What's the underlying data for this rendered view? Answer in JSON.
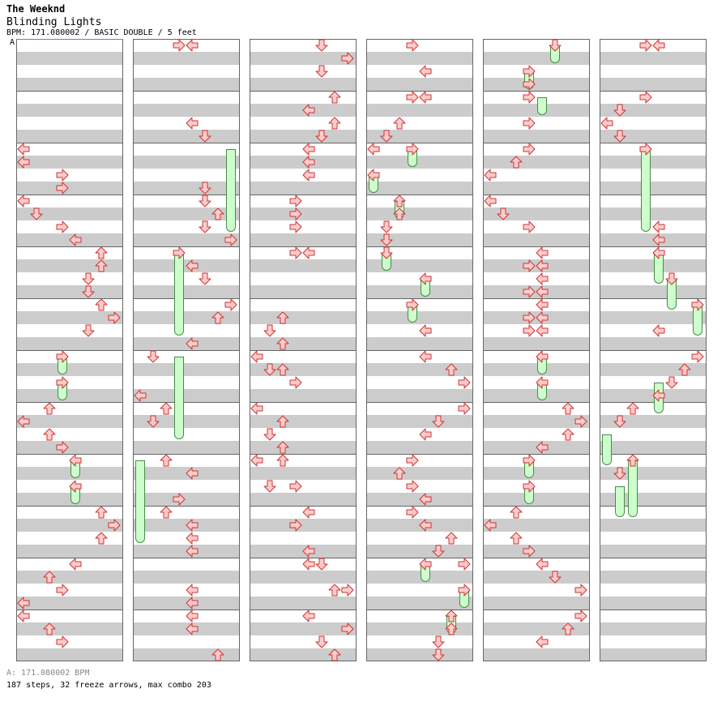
{
  "song": {
    "artist": "The Weeknd",
    "title": "Blinding Lights",
    "meta": "BPM: 171.080002 / BASIC DOUBLE / 5 feet",
    "segment_marker": "A"
  },
  "footer": {
    "bpm_line": "A: 171.080002 BPM",
    "summary": "187 steps, 32 freeze arrows, max combo 203"
  },
  "colors": {
    "arrow_fill": "#ffcccc",
    "arrow_stroke": "#cc3333",
    "freeze_fill": "#ccffcc",
    "freeze_stroke": "#4a8a4a"
  },
  "chart": {
    "columns": 6,
    "rows_per_column": 48,
    "rows_per_measure": 4,
    "lane_directions": [
      "left",
      "down",
      "up",
      "right",
      "left",
      "down",
      "up",
      "right"
    ],
    "columns_notes": [
      [
        [
          8,
          0
        ],
        [
          9,
          0
        ],
        [
          10,
          3
        ],
        [
          11,
          3
        ],
        [
          12,
          0
        ],
        [
          13,
          1
        ],
        [
          14,
          3
        ],
        [
          15,
          4
        ],
        [
          16,
          6
        ],
        [
          17,
          6
        ],
        [
          18,
          5
        ],
        [
          19,
          5
        ],
        [
          20,
          6
        ],
        [
          21,
          7
        ],
        [
          22,
          5
        ],
        [
          24,
          3
        ],
        [
          26,
          3
        ],
        [
          28,
          2
        ],
        [
          29,
          0
        ],
        [
          30,
          2
        ],
        [
          31,
          3
        ],
        [
          32,
          4
        ],
        [
          34,
          4
        ],
        [
          36,
          6
        ],
        [
          37,
          7
        ],
        [
          38,
          6
        ],
        [
          40,
          4
        ],
        [
          41,
          2
        ],
        [
          42,
          3
        ],
        [
          43,
          0
        ],
        [
          44,
          0
        ],
        [
          45,
          2
        ],
        [
          46,
          3
        ]
      ],
      [
        [
          0,
          3
        ],
        [
          0,
          4
        ],
        [
          6,
          4
        ],
        [
          7,
          5
        ],
        [
          11,
          5
        ],
        [
          12,
          5
        ],
        [
          13,
          6
        ],
        [
          14,
          5
        ],
        [
          15,
          7
        ],
        [
          16,
          3
        ],
        [
          17,
          4
        ],
        [
          18,
          5
        ],
        [
          20,
          7
        ],
        [
          21,
          6
        ],
        [
          23,
          4
        ],
        [
          24,
          1
        ],
        [
          27,
          0
        ],
        [
          28,
          2
        ],
        [
          29,
          1
        ],
        [
          32,
          2
        ],
        [
          33,
          4
        ],
        [
          35,
          3
        ],
        [
          36,
          2
        ],
        [
          37,
          4
        ],
        [
          38,
          4
        ],
        [
          39,
          4
        ],
        [
          42,
          4
        ],
        [
          43,
          4
        ],
        [
          44,
          4
        ],
        [
          45,
          4
        ],
        [
          47,
          6
        ]
      ],
      [
        [
          0,
          5
        ],
        [
          1,
          7
        ],
        [
          2,
          5
        ],
        [
          4,
          6
        ],
        [
          5,
          4
        ],
        [
          6,
          6
        ],
        [
          7,
          5
        ],
        [
          8,
          4
        ],
        [
          9,
          4
        ],
        [
          10,
          4
        ],
        [
          12,
          3
        ],
        [
          13,
          3
        ],
        [
          14,
          3
        ],
        [
          16,
          3
        ],
        [
          16,
          4
        ],
        [
          21,
          2
        ],
        [
          22,
          1
        ],
        [
          23,
          2
        ],
        [
          24,
          0
        ],
        [
          25,
          1
        ],
        [
          25,
          2
        ],
        [
          26,
          3
        ],
        [
          28,
          0
        ],
        [
          29,
          2
        ],
        [
          30,
          1
        ],
        [
          31,
          2
        ],
        [
          32,
          0
        ],
        [
          32,
          2
        ],
        [
          34,
          1
        ],
        [
          34,
          3
        ],
        [
          36,
          4
        ],
        [
          37,
          3
        ],
        [
          39,
          4
        ],
        [
          40,
          4
        ],
        [
          40,
          5
        ],
        [
          42,
          6
        ],
        [
          42,
          7
        ],
        [
          44,
          4
        ],
        [
          45,
          7
        ],
        [
          46,
          5
        ],
        [
          47,
          6
        ]
      ],
      [
        [
          0,
          3
        ],
        [
          2,
          4
        ],
        [
          4,
          3
        ],
        [
          4,
          4
        ],
        [
          6,
          2
        ],
        [
          7,
          1
        ],
        [
          8,
          0
        ],
        [
          8,
          3
        ],
        [
          10,
          0
        ],
        [
          12,
          2
        ],
        [
          13,
          2
        ],
        [
          14,
          1
        ],
        [
          15,
          1
        ],
        [
          16,
          1
        ],
        [
          18,
          4
        ],
        [
          20,
          3
        ],
        [
          22,
          4
        ],
        [
          24,
          4
        ],
        [
          25,
          6
        ],
        [
          26,
          7
        ],
        [
          28,
          7
        ],
        [
          29,
          5
        ],
        [
          30,
          4
        ],
        [
          32,
          3
        ],
        [
          33,
          2
        ],
        [
          34,
          3
        ],
        [
          35,
          4
        ],
        [
          36,
          3
        ],
        [
          37,
          4
        ],
        [
          38,
          6
        ],
        [
          39,
          5
        ],
        [
          40,
          4
        ],
        [
          40,
          7
        ],
        [
          42,
          7
        ],
        [
          44,
          6
        ],
        [
          45,
          6
        ],
        [
          46,
          5
        ],
        [
          47,
          5
        ]
      ],
      [
        [
          0,
          5
        ],
        [
          2,
          3
        ],
        [
          3,
          3
        ],
        [
          4,
          3
        ],
        [
          6,
          3
        ],
        [
          8,
          3
        ],
        [
          9,
          2
        ],
        [
          10,
          0
        ],
        [
          12,
          0
        ],
        [
          13,
          1
        ],
        [
          14,
          3
        ],
        [
          16,
          4
        ],
        [
          17,
          3
        ],
        [
          17,
          4
        ],
        [
          18,
          4
        ],
        [
          19,
          3
        ],
        [
          19,
          4
        ],
        [
          20,
          4
        ],
        [
          21,
          3
        ],
        [
          21,
          4
        ],
        [
          22,
          3
        ],
        [
          22,
          4
        ],
        [
          24,
          4
        ],
        [
          26,
          4
        ],
        [
          28,
          6
        ],
        [
          29,
          7
        ],
        [
          30,
          6
        ],
        [
          31,
          4
        ],
        [
          32,
          3
        ],
        [
          34,
          3
        ],
        [
          36,
          2
        ],
        [
          37,
          0
        ],
        [
          38,
          2
        ],
        [
          39,
          3
        ],
        [
          40,
          4
        ],
        [
          41,
          5
        ],
        [
          42,
          7
        ],
        [
          44,
          7
        ],
        [
          45,
          6
        ],
        [
          46,
          4
        ]
      ],
      [
        [
          0,
          3
        ],
        [
          0,
          4
        ],
        [
          4,
          3
        ],
        [
          5,
          1
        ],
        [
          6,
          0
        ],
        [
          7,
          1
        ],
        [
          8,
          3
        ],
        [
          14,
          4
        ],
        [
          15,
          4
        ],
        [
          16,
          4
        ],
        [
          18,
          5
        ],
        [
          20,
          7
        ],
        [
          22,
          4
        ],
        [
          24,
          7
        ],
        [
          25,
          6
        ],
        [
          26,
          5
        ],
        [
          27,
          4
        ],
        [
          28,
          2
        ],
        [
          29,
          1
        ],
        [
          32,
          2
        ],
        [
          33,
          1
        ]
      ]
    ],
    "columns_freezes": [
      [
        [
          24,
          25,
          3
        ],
        [
          26,
          27,
          3
        ],
        [
          32,
          33,
          4
        ],
        [
          34,
          35,
          4
        ]
      ],
      [
        [
          8,
          14,
          7
        ],
        [
          16,
          22,
          3
        ],
        [
          24,
          30,
          3
        ],
        [
          32,
          38,
          0
        ]
      ],
      [],
      [
        [
          8,
          9,
          3
        ],
        [
          10,
          11,
          0
        ],
        [
          12,
          13,
          2
        ],
        [
          16,
          17,
          1
        ],
        [
          18,
          19,
          4
        ],
        [
          20,
          21,
          3
        ],
        [
          40,
          41,
          4
        ],
        [
          42,
          43,
          7
        ],
        [
          44,
          45,
          6
        ]
      ],
      [
        [
          0,
          1,
          5
        ],
        [
          2,
          3,
          3
        ],
        [
          4,
          5,
          4
        ],
        [
          24,
          25,
          4
        ],
        [
          26,
          27,
          4
        ],
        [
          32,
          33,
          3
        ],
        [
          34,
          35,
          3
        ]
      ],
      [
        [
          8,
          14,
          3
        ],
        [
          16,
          18,
          4
        ],
        [
          18,
          20,
          5
        ],
        [
          20,
          22,
          7
        ],
        [
          26,
          28,
          4
        ],
        [
          30,
          32,
          0
        ],
        [
          34,
          36,
          1
        ],
        [
          32,
          36,
          2
        ]
      ]
    ]
  }
}
